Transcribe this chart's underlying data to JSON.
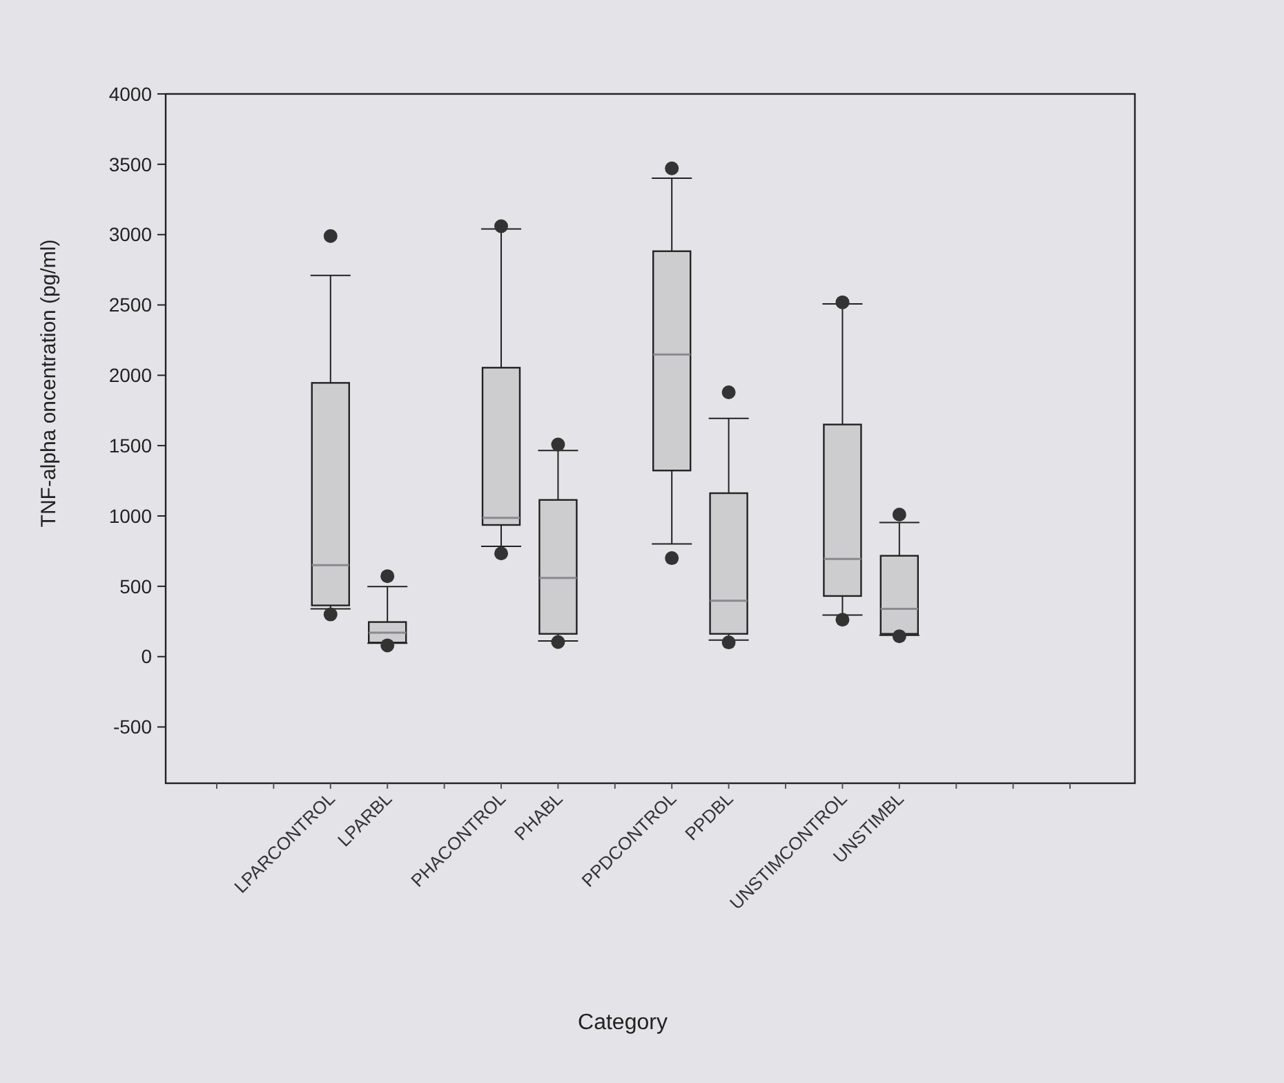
{
  "chart_data": {
    "type": "box",
    "xlabel": "Category",
    "ylabel": "TNF-alpha oncentration (pg/ml)",
    "categories": [
      null,
      null,
      "LPARCONTROL",
      "LPARBL",
      null,
      "PHACONTROL",
      "PHABL",
      null,
      "PPDCONTROL",
      "PPDBL",
      null,
      "UNSTIMCONTROL",
      "UNSTIMBL",
      null,
      null,
      null
    ],
    "boxes": [
      null,
      null,
      {
        "low": 340,
        "q1": 364,
        "median": 650,
        "q3": 1946,
        "high": 2710,
        "outliers": [
          300,
          2990
        ]
      },
      {
        "low": 95,
        "q1": 100,
        "median": 170,
        "q3": 246,
        "high": 498,
        "outliers": [
          80,
          572
        ]
      },
      null,
      {
        "low": 784,
        "q1": 936,
        "median": 987,
        "q3": 2054,
        "high": 3040,
        "outliers": [
          734,
          3060
        ]
      },
      {
        "low": 111,
        "q1": 162,
        "median": 559,
        "q3": 1114,
        "high": 1465,
        "outliers": [
          104,
          1508
        ]
      },
      null,
      {
        "low": 801,
        "q1": 1323,
        "median": 2148,
        "q3": 2882,
        "high": 3401,
        "outliers": [
          700,
          3471
        ]
      },
      {
        "low": 118,
        "q1": 162,
        "median": 397,
        "q3": 1162,
        "high": 1694,
        "outliers": [
          101,
          1879
        ]
      },
      null,
      {
        "low": 296,
        "q1": 431,
        "median": 694,
        "q3": 1650,
        "high": 2508,
        "outliers": [
          263,
          2519
        ]
      },
      {
        "low": 152,
        "q1": 162,
        "median": 340,
        "q3": 717,
        "high": 953,
        "outliers": [
          145,
          1010
        ]
      },
      null,
      null,
      null
    ],
    "color": "#cdcccf",
    "ylim": [
      -900,
      4000
    ],
    "yticks": [
      -500,
      0,
      500,
      1000,
      1500,
      2000,
      2500,
      3000,
      3500,
      4000
    ],
    "grid": false
  }
}
